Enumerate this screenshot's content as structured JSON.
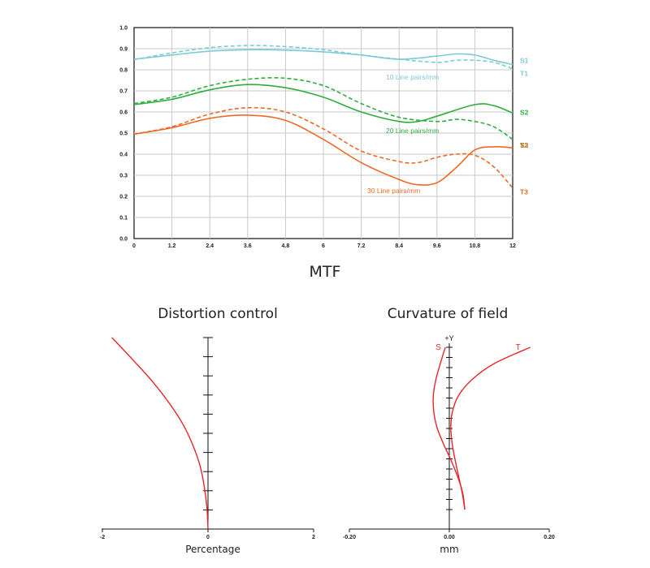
{
  "chart_data": [
    {
      "type": "line",
      "title": "MTF",
      "xlim": [
        0,
        12
      ],
      "ylim": [
        0,
        1.0
      ],
      "x_ticks": [
        "0",
        "1.2",
        "2.4",
        "3.6",
        "4.8",
        "6",
        "7.2",
        "8.4",
        "9.6",
        "10.8",
        "12"
      ],
      "y_ticks": [
        "0.0",
        "0.1",
        "0.2",
        "0.3",
        "0.4",
        "0.5",
        "0.6",
        "0.7",
        "0.8",
        "0.9",
        "1.0"
      ],
      "grid": true,
      "annotations": [
        "10 Line pairs/mm",
        "20 Line pairs/mm",
        "30 Line pairs/mm"
      ],
      "colors": {
        "lp10": "#7ccbd6",
        "lp20": "#2fae3e",
        "lp30": "#ee6a24"
      },
      "series": [
        {
          "name": "S1",
          "style": "solid",
          "color": "#7ccbd6",
          "x": [
            0,
            1.2,
            2.4,
            3.6,
            4.8,
            6,
            7.2,
            8.4,
            9.6,
            10.2,
            10.8,
            11.4,
            12
          ],
          "y": [
            0.85,
            0.87,
            0.888,
            0.895,
            0.893,
            0.885,
            0.87,
            0.85,
            0.865,
            0.875,
            0.87,
            0.845,
            0.825
          ]
        },
        {
          "name": "T1",
          "style": "dashed",
          "color": "#7ccbd6",
          "x": [
            0,
            1.2,
            2.4,
            3.6,
            4.8,
            6,
            7.2,
            8.4,
            9.6,
            10.2,
            10.8,
            11.4,
            12
          ],
          "y": [
            0.848,
            0.88,
            0.905,
            0.915,
            0.91,
            0.895,
            0.87,
            0.85,
            0.835,
            0.845,
            0.845,
            0.835,
            0.805
          ]
        },
        {
          "name": "S2",
          "style": "solid",
          "color": "#2fae3e",
          "x": [
            0,
            1.2,
            2.4,
            3.6,
            4.8,
            6,
            7.2,
            8.4,
            9.0,
            9.6,
            10.8,
            11.4,
            12
          ],
          "y": [
            0.635,
            0.66,
            0.705,
            0.73,
            0.715,
            0.67,
            0.6,
            0.555,
            0.555,
            0.58,
            0.635,
            0.63,
            0.595
          ]
        },
        {
          "name": "T2",
          "style": "dashed",
          "color": "#2fae3e",
          "x": [
            0,
            1.2,
            2.4,
            3.6,
            4.8,
            6,
            7.2,
            8.4,
            9.6,
            10.2,
            10.8,
            11.4,
            12
          ],
          "y": [
            0.64,
            0.67,
            0.725,
            0.755,
            0.76,
            0.725,
            0.64,
            0.575,
            0.555,
            0.565,
            0.555,
            0.53,
            0.47
          ]
        },
        {
          "name": "S3",
          "style": "solid",
          "color": "#ee6a24",
          "x": [
            0,
            1.2,
            2.4,
            3.6,
            4.8,
            6,
            7.2,
            8.4,
            9.0,
            9.6,
            10.2,
            10.8,
            11.4,
            12
          ],
          "y": [
            0.495,
            0.525,
            0.57,
            0.585,
            0.56,
            0.47,
            0.36,
            0.28,
            0.255,
            0.265,
            0.335,
            0.42,
            0.435,
            0.43
          ]
        },
        {
          "name": "T3",
          "style": "dashed",
          "color": "#ee6a24",
          "x": [
            0,
            1.2,
            2.4,
            3.6,
            4.8,
            6,
            7.2,
            8.4,
            9.0,
            9.6,
            10.2,
            10.8,
            11.4,
            12
          ],
          "y": [
            0.495,
            0.53,
            0.59,
            0.62,
            0.6,
            0.52,
            0.415,
            0.365,
            0.36,
            0.385,
            0.4,
            0.395,
            0.34,
            0.24
          ]
        }
      ]
    },
    {
      "type": "line",
      "title": "Distortion control",
      "xlabel": "Percentage",
      "xlim": [
        -2,
        2
      ],
      "x_ticks": [
        "-2",
        "0",
        "2"
      ],
      "ylim": [
        0,
        1
      ],
      "series": [
        {
          "name": "distortion",
          "color": "#e8262b",
          "x": [
            0,
            -0.02,
            -0.07,
            -0.15,
            -0.29,
            -0.48,
            -0.74,
            -1.05,
            -1.41,
            -1.82
          ],
          "y": [
            0,
            0.11,
            0.22,
            0.33,
            0.44,
            0.55,
            0.66,
            0.77,
            0.88,
            1.0
          ]
        }
      ]
    },
    {
      "type": "line",
      "title": "Curvature of field",
      "xlabel": "mm",
      "ylabel": "+Y",
      "xlim": [
        -0.2,
        0.2
      ],
      "x_ticks": [
        "-0.20",
        "0.00",
        "0.20"
      ],
      "ylim": [
        0,
        1
      ],
      "series": [
        {
          "name": "S",
          "color": "#e8262b",
          "x": [
            0.031,
            0.027,
            0.017,
            0.004,
            -0.011,
            -0.024,
            -0.031,
            -0.032,
            -0.027,
            -0.018,
            -0.008
          ],
          "y": [
            0,
            0.1,
            0.2,
            0.3,
            0.4,
            0.5,
            0.6,
            0.7,
            0.8,
            0.9,
            1.0
          ]
        },
        {
          "name": "T",
          "color": "#e8262b",
          "x": [
            0.031,
            0.026,
            0.019,
            0.012,
            0.006,
            0.003,
            0.006,
            0.018,
            0.045,
            0.09,
            0.162
          ],
          "y": [
            0,
            0.1,
            0.2,
            0.3,
            0.4,
            0.5,
            0.6,
            0.7,
            0.8,
            0.9,
            1.0
          ]
        }
      ]
    }
  ]
}
